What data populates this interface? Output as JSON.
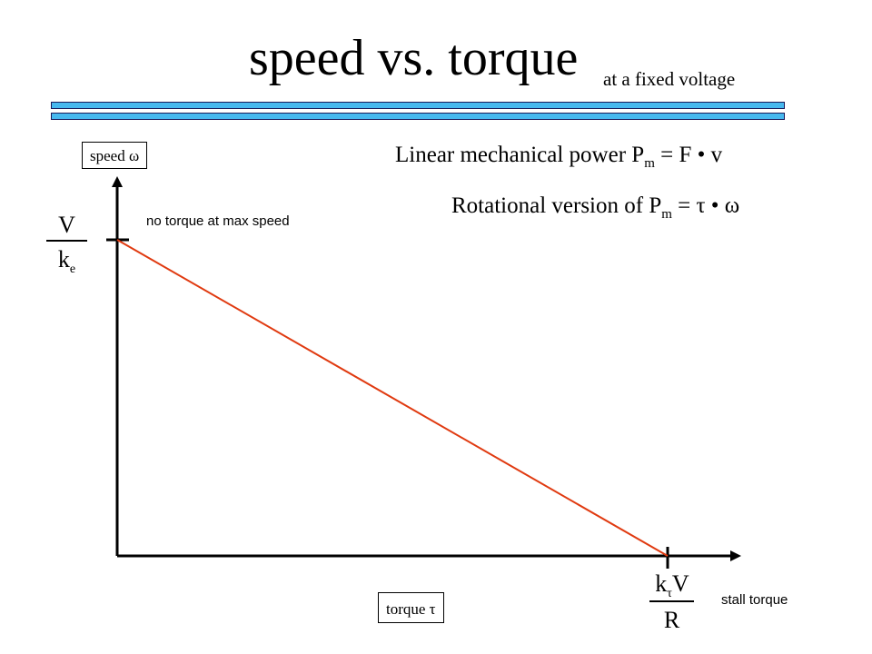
{
  "slide": {
    "title": "speed vs. torque",
    "subtitle": "at a fixed voltage"
  },
  "diagram": {
    "y_axis_label": "speed ω",
    "x_axis_label": "torque τ",
    "y_intercept": {
      "numerator": "V",
      "denominator_base": "k",
      "denominator_sub": "e"
    },
    "x_intercept": {
      "numerator_base": "k",
      "numerator_sub": "τ",
      "numerator_rest": "V",
      "denominator": "R"
    },
    "annotation_top": "no torque at max speed",
    "annotation_bottom": "stall torque",
    "line_color": "#e03a10",
    "accent_bar_color": "#47b8ee"
  },
  "equations": {
    "linear_prefix": "Linear mechanical power P",
    "linear_sub": "m",
    "linear_rest": " = F • v",
    "rotational_prefix": "Rotational version of P",
    "rotational_sub": "m",
    "rotational_rest": " = τ • ω"
  }
}
